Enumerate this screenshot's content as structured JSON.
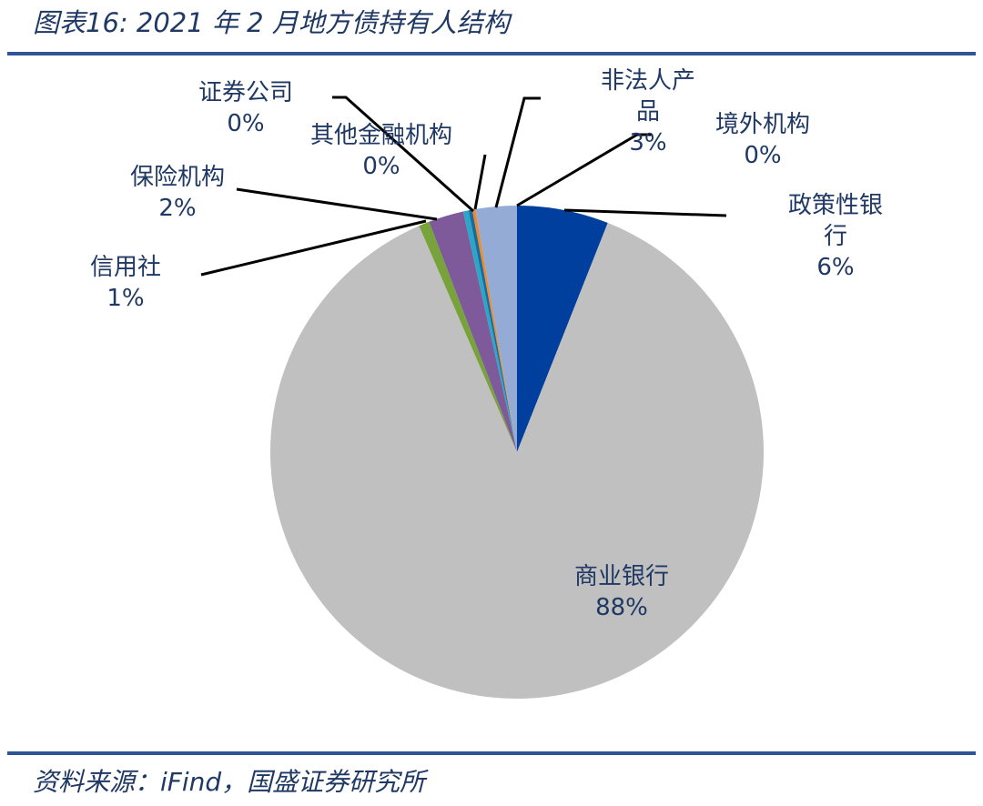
{
  "title": "图表16:  2021 年 2 月地方债持有人结构",
  "source": "资料来源：iFind，国盛证券研究所",
  "chart_data": {
    "type": "pie",
    "title": "",
    "start": "top, clockwise",
    "slices": [
      {
        "label": "政策性银行",
        "label_lines": [
          "政策性银",
          "行"
        ],
        "pct_text": "6%",
        "value": 6.0,
        "color": "#003f9e"
      },
      {
        "label": "商业银行",
        "label_lines": [
          "商业银行"
        ],
        "pct_text": "88%",
        "value": 87.5,
        "color": "#c0c0c0"
      },
      {
        "label": "信用社",
        "label_lines": [
          "信用社"
        ],
        "pct_text": "1%",
        "value": 0.7,
        "color": "#77a33a"
      },
      {
        "label": "保险机构",
        "label_lines": [
          "保险机构"
        ],
        "pct_text": "2%",
        "value": 2.3,
        "color": "#7e5a9b"
      },
      {
        "label": "证券公司",
        "label_lines": [
          "证券公司"
        ],
        "pct_text": "0%",
        "value": 0.35,
        "color": "#2aa7c8"
      },
      {
        "label": "其他金融机构",
        "label_lines": [
          "其他金融机构"
        ],
        "pct_text": "0%",
        "value": 0.25,
        "color": "#1a6aa0"
      },
      {
        "label": "境外机构",
        "label_lines": [
          "境外机构"
        ],
        "pct_text": "0%",
        "value": 0.2,
        "color": "#f08a24"
      },
      {
        "label": "非法人产品",
        "label_lines": [
          "非法人产",
          "品"
        ],
        "pct_text": "3%",
        "value": 2.7,
        "color": "#94abd6"
      }
    ]
  }
}
